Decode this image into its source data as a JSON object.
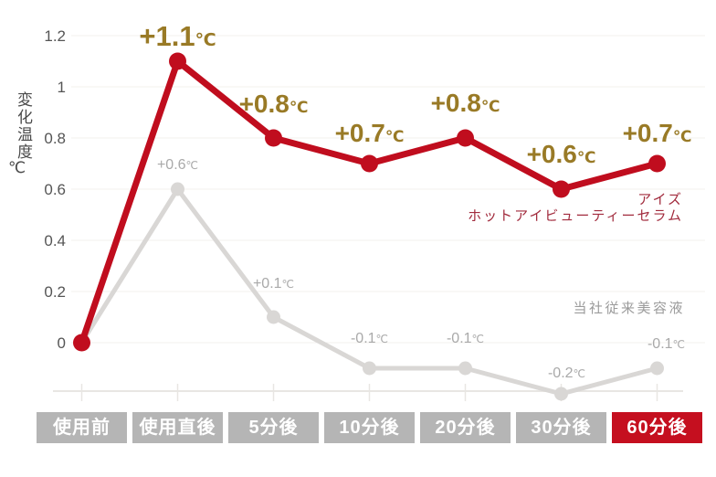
{
  "y_axis": {
    "title": "変化温度",
    "unit": "℃",
    "ticks": [
      {
        "label": "1.2",
        "value": 1.2
      },
      {
        "label": "1",
        "value": 1.0
      },
      {
        "label": "0.8",
        "value": 0.8
      },
      {
        "label": "0.6",
        "value": 0.6
      },
      {
        "label": "0.4",
        "value": 0.4
      },
      {
        "label": "0.2",
        "value": 0.2
      },
      {
        "label": "0",
        "value": 0
      }
    ]
  },
  "x_axis": {
    "categories": [
      "使用前",
      "使用直後",
      "5分後",
      "10分後",
      "20分後",
      "30分後",
      "60分後"
    ],
    "highlight_index": 6
  },
  "legend": {
    "product_line1": "アイズ",
    "product_line2": "ホットアイビューティーセラム",
    "conventional": "当社従来美容液"
  },
  "chart_data": {
    "type": "line",
    "title": "",
    "xlabel": "",
    "ylabel": "変化温度 ℃",
    "unit": "℃",
    "ylim": [
      -0.3,
      1.2
    ],
    "grid": "faint horizontal gridlines every 0.2",
    "legend_position": "inline right of lines",
    "categories": [
      "使用前",
      "使用直後",
      "5分後",
      "10分後",
      "20分後",
      "30分後",
      "60分後"
    ],
    "series": [
      {
        "name": "アイズ ホットアイビューティーセラム",
        "color": "#c00d1e",
        "values": [
          0,
          1.1,
          0.8,
          0.7,
          0.8,
          0.6,
          0.7
        ],
        "point_labels": [
          "",
          "+1.1",
          "+0.8",
          "+0.7",
          "+0.8",
          "+0.6",
          "+0.7"
        ],
        "label_color": "#997a26"
      },
      {
        "name": "当社従来美容液",
        "color": "#d9d7d5",
        "values": [
          0,
          0.6,
          0.1,
          -0.1,
          -0.1,
          -0.2,
          -0.1
        ],
        "point_labels": [
          "",
          "+0.6",
          "+0.1",
          "-0.1",
          "-0.1",
          "-0.2",
          "-0.1"
        ],
        "label_color": "#a9a9a9"
      }
    ]
  },
  "colors": {
    "red_line": "#c00d1e",
    "gold_label": "#997a26",
    "gray_line": "#d9d7d5",
    "gray_label": "#a9a9a9",
    "legend_red_text": "#a22c3e",
    "legend_gray_text": "#9b9b9b",
    "category_box": "#b5b5b5",
    "category_box_highlight": "#c50f1f",
    "tick_text": "#555555",
    "gridline": "#f3f0ee",
    "baseline": "#e8e6e3"
  }
}
